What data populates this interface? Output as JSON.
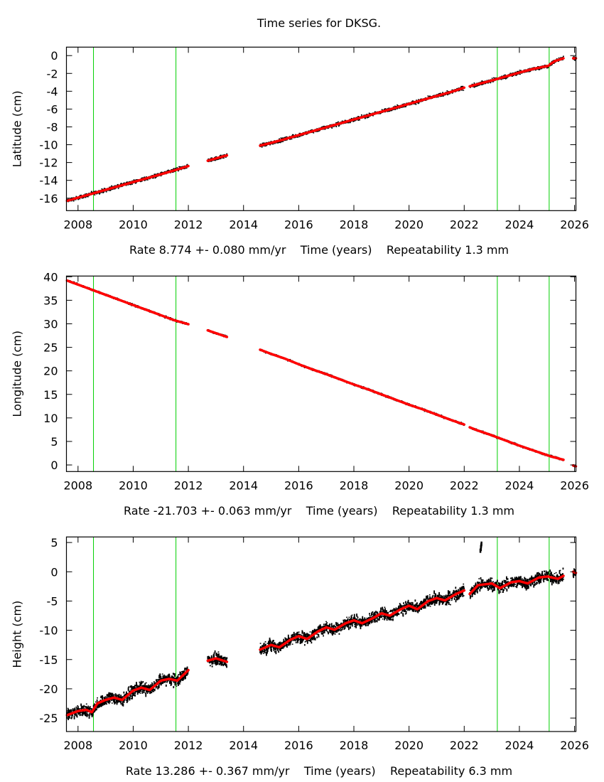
{
  "title": "Time series for DKSG.",
  "colors": {
    "data": "#000000",
    "model": "#ff0000",
    "event_line": "#00d000",
    "frame": "#000000"
  },
  "chart_data": [
    {
      "type": "scatter",
      "ylabel": "Latitude (cm)",
      "xlabel": "Time (years)",
      "rate_text": "Rate 8.774 +- 0.080 mm/yr",
      "repeatability_text": "Repeatability 1.3 mm",
      "xlim": [
        2007.58,
        2026.05
      ],
      "ylim": [
        -17.4,
        0.95
      ],
      "xticks": [
        2008,
        2010,
        2012,
        2014,
        2016,
        2018,
        2020,
        2022,
        2024,
        2026
      ],
      "yticks": [
        0,
        -2,
        -4,
        -6,
        -8,
        -10,
        -12,
        -14,
        -16
      ],
      "event_lines": [
        2008.56,
        2011.55,
        2023.2,
        2025.08
      ],
      "scatter_cm": 0.3,
      "segments": [
        [
          [
            2007.6,
            -16.3
          ],
          [
            2008,
            -15.95
          ],
          [
            2008.5,
            -15.51
          ],
          [
            2009,
            -15.07
          ],
          [
            2009.5,
            -14.63
          ],
          [
            2010,
            -14.19
          ],
          [
            2010.5,
            -13.76
          ],
          [
            2011,
            -13.32
          ],
          [
            2011.5,
            -12.88
          ],
          [
            2012,
            -12.4
          ]
        ],
        [
          [
            2012.7,
            -11.8
          ],
          [
            2013.4,
            -11.2
          ]
        ],
        [
          [
            2014.6,
            -10.1
          ],
          [
            2015,
            -9.8
          ],
          [
            2015.5,
            -9.37
          ],
          [
            2016,
            -8.93
          ],
          [
            2016.5,
            -8.49
          ],
          [
            2017,
            -8.05
          ],
          [
            2017.5,
            -7.61
          ],
          [
            2018,
            -7.17
          ],
          [
            2018.5,
            -6.74
          ],
          [
            2019,
            -6.3
          ],
          [
            2019.5,
            -5.86
          ],
          [
            2020,
            -5.42
          ],
          [
            2020.5,
            -4.98
          ],
          [
            2021,
            -4.54
          ],
          [
            2021.5,
            -4.1
          ],
          [
            2022,
            -3.6
          ]
        ],
        [
          [
            2022.2,
            -3.45
          ],
          [
            2022.5,
            -3.2
          ],
          [
            2023,
            -2.79
          ],
          [
            2023.5,
            -2.35
          ],
          [
            2024,
            -1.91
          ],
          [
            2024.5,
            -1.5
          ],
          [
            2025.05,
            -1.15
          ]
        ],
        [
          [
            2025.1,
            -1.0
          ],
          [
            2025.3,
            -0.6
          ],
          [
            2025.6,
            -0.3
          ]
        ],
        [
          [
            2025.95,
            -0.3
          ],
          [
            2026.05,
            -0.3
          ]
        ]
      ],
      "outliers": []
    },
    {
      "type": "scatter",
      "ylabel": "Longitude (cm)",
      "xlabel": "Time (years)",
      "rate_text": "Rate -21.703 +- 0.063 mm/yr",
      "repeatability_text": "Repeatability 1.3 mm",
      "xlim": [
        2007.58,
        2026.05
      ],
      "ylim": [
        -1.4,
        40.15
      ],
      "xticks": [
        2008,
        2010,
        2012,
        2014,
        2016,
        2018,
        2020,
        2022,
        2024,
        2026
      ],
      "yticks": [
        40,
        35,
        30,
        25,
        20,
        15,
        10,
        5,
        0
      ],
      "event_lines": [
        2008.56,
        2011.55,
        2023.2,
        2025.08
      ],
      "scatter_cm": 0.3,
      "segments": [
        [
          [
            2007.6,
            39.2
          ],
          [
            2008,
            38.33
          ],
          [
            2008.5,
            37.25
          ],
          [
            2009,
            36.16
          ],
          [
            2009.5,
            35.08
          ],
          [
            2010,
            33.99
          ],
          [
            2010.5,
            32.91
          ],
          [
            2011,
            31.82
          ],
          [
            2011.5,
            30.74
          ],
          [
            2012,
            29.9
          ]
        ],
        [
          [
            2012.7,
            28.6
          ],
          [
            2013.4,
            27.2
          ]
        ],
        [
          [
            2014.6,
            24.5
          ],
          [
            2015,
            23.6
          ],
          [
            2015.5,
            22.6
          ],
          [
            2016,
            21.4
          ],
          [
            2016.5,
            20.3
          ],
          [
            2017,
            19.3
          ],
          [
            2017.5,
            18.2
          ],
          [
            2018,
            17.1
          ],
          [
            2018.5,
            16.1
          ],
          [
            2019,
            15.0
          ],
          [
            2019.5,
            13.9
          ],
          [
            2020,
            12.8
          ],
          [
            2020.5,
            11.8
          ],
          [
            2021,
            10.7
          ],
          [
            2021.5,
            9.6
          ],
          [
            2022,
            8.6
          ]
        ],
        [
          [
            2022.2,
            8.0
          ],
          [
            2022.5,
            7.3
          ],
          [
            2023,
            6.3
          ],
          [
            2023.5,
            5.2
          ],
          [
            2024,
            4.1
          ],
          [
            2024.5,
            3.1
          ],
          [
            2025.05,
            2.0
          ]
        ],
        [
          [
            2025.1,
            1.9
          ],
          [
            2025.6,
            1.1
          ]
        ],
        [
          [
            2025.95,
            -0.1
          ],
          [
            2026.05,
            -0.3
          ]
        ]
      ],
      "outliers": []
    },
    {
      "type": "scatter",
      "ylabel": "Height (cm)",
      "xlabel": "Time (years)",
      "rate_text": "Rate 13.286 +- 0.367 mm/yr",
      "repeatability_text": "Repeatability 6.3 mm",
      "xlim": [
        2007.58,
        2026.05
      ],
      "ylim": [
        -27.3,
        5.95
      ],
      "xticks": [
        2008,
        2010,
        2012,
        2014,
        2016,
        2018,
        2020,
        2022,
        2024,
        2026
      ],
      "yticks": [
        5,
        0,
        -5,
        -10,
        -15,
        -20,
        -25
      ],
      "event_lines": [
        2008.56,
        2011.55,
        2023.2,
        2025.08
      ],
      "scatter_cm": 1.4,
      "segments": [
        [
          [
            2007.6,
            -24.5
          ],
          [
            2008,
            -23.8
          ],
          [
            2008.3,
            -23.6
          ],
          [
            2008.5,
            -24.0
          ],
          [
            2008.7,
            -22.5
          ],
          [
            2009,
            -21.9
          ],
          [
            2009.3,
            -21.5
          ],
          [
            2009.6,
            -21.9
          ],
          [
            2010,
            -20.3
          ],
          [
            2010.3,
            -19.8
          ],
          [
            2010.6,
            -20.2
          ],
          [
            2011,
            -18.6
          ],
          [
            2011.3,
            -18.3
          ],
          [
            2011.6,
            -18.6
          ],
          [
            2012,
            -16.8
          ]
        ],
        [
          [
            2012.7,
            -15.2
          ],
          [
            2013,
            -14.8
          ],
          [
            2013.4,
            -15.4
          ]
        ],
        [
          [
            2014.6,
            -13.3
          ],
          [
            2015,
            -12.5
          ],
          [
            2015.3,
            -12.9
          ],
          [
            2015.7,
            -11.6
          ],
          [
            2016,
            -11.0
          ],
          [
            2016.3,
            -11.5
          ],
          [
            2016.7,
            -10.2
          ],
          [
            2017,
            -9.5
          ],
          [
            2017.3,
            -9.9
          ],
          [
            2017.7,
            -8.8
          ],
          [
            2018,
            -8.3
          ],
          [
            2018.3,
            -8.8
          ],
          [
            2018.7,
            -7.9
          ],
          [
            2019,
            -7.1
          ],
          [
            2019.3,
            -7.5
          ],
          [
            2019.7,
            -6.4
          ],
          [
            2020,
            -5.8
          ],
          [
            2020.3,
            -6.4
          ],
          [
            2020.7,
            -5.0
          ],
          [
            2021,
            -4.5
          ],
          [
            2021.3,
            -4.9
          ],
          [
            2021.7,
            -3.8
          ],
          [
            2022,
            -3.2
          ]
        ],
        [
          [
            2022.2,
            -3.8
          ],
          [
            2022.5,
            -2.3
          ],
          [
            2023,
            -2.0
          ],
          [
            2023.3,
            -2.8
          ],
          [
            2023.7,
            -1.8
          ],
          [
            2024,
            -1.6
          ],
          [
            2024.3,
            -2.0
          ],
          [
            2024.7,
            -1.0
          ],
          [
            2025.05,
            -0.8
          ]
        ],
        [
          [
            2025.1,
            -0.9
          ],
          [
            2025.4,
            -1.2
          ],
          [
            2025.6,
            -0.7
          ]
        ],
        [
          [
            2025.95,
            0.0
          ],
          [
            2026.05,
            -0.2
          ]
        ]
      ],
      "outliers": [
        [
          2022.58,
          3.6
        ],
        [
          2022.6,
          4.2
        ],
        [
          2022.62,
          4.8
        ],
        [
          2022.6,
          3.9
        ],
        [
          2022.61,
          4.5
        ]
      ]
    }
  ]
}
